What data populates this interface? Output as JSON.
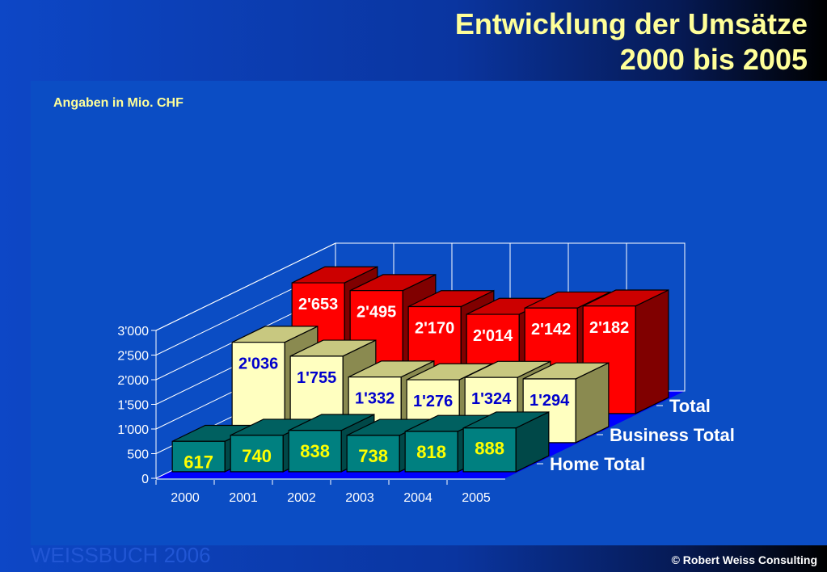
{
  "slide": {
    "title_line1": "Entwicklung der Umsätze",
    "title_line2": "2000 bis 2005",
    "subtitle": "Angaben in Mio. CHF",
    "footer_left": "WEISSBUCH  2006",
    "footer_right": "© Robert Weiss Consulting"
  },
  "colors": {
    "total": "#ff0000",
    "business_total": "#ffffc0",
    "home_total": "#008080",
    "floor": "#0000ff",
    "title": "#ffff99"
  },
  "chart_data": {
    "type": "bar",
    "title": "",
    "xlabel": "",
    "ylabel": "",
    "ylim": [
      0,
      3000
    ],
    "grid": true,
    "categories": [
      "2000",
      "2001",
      "2002",
      "2003",
      "2004",
      "2005"
    ],
    "yticks": [
      "0",
      "500",
      "1'000",
      "1'500",
      "2'000",
      "2'500",
      "3'000"
    ],
    "series": [
      {
        "name": "Home Total",
        "values": [
          617,
          740,
          838,
          738,
          818,
          888
        ],
        "labels": [
          "617",
          "740",
          "838",
          "738",
          "818",
          "888"
        ]
      },
      {
        "name": "Business Total",
        "values": [
          2036,
          1755,
          1332,
          1276,
          1324,
          1294
        ],
        "labels": [
          "2'036",
          "1'755",
          "1'332",
          "1'276",
          "1'324",
          "1'294"
        ]
      },
      {
        "name": "Total",
        "values": [
          2653,
          2495,
          2170,
          2014,
          2142,
          2182
        ],
        "labels": [
          "2'653",
          "2'495",
          "2'170",
          "2'014",
          "2'142",
          "2'182"
        ]
      }
    ]
  }
}
